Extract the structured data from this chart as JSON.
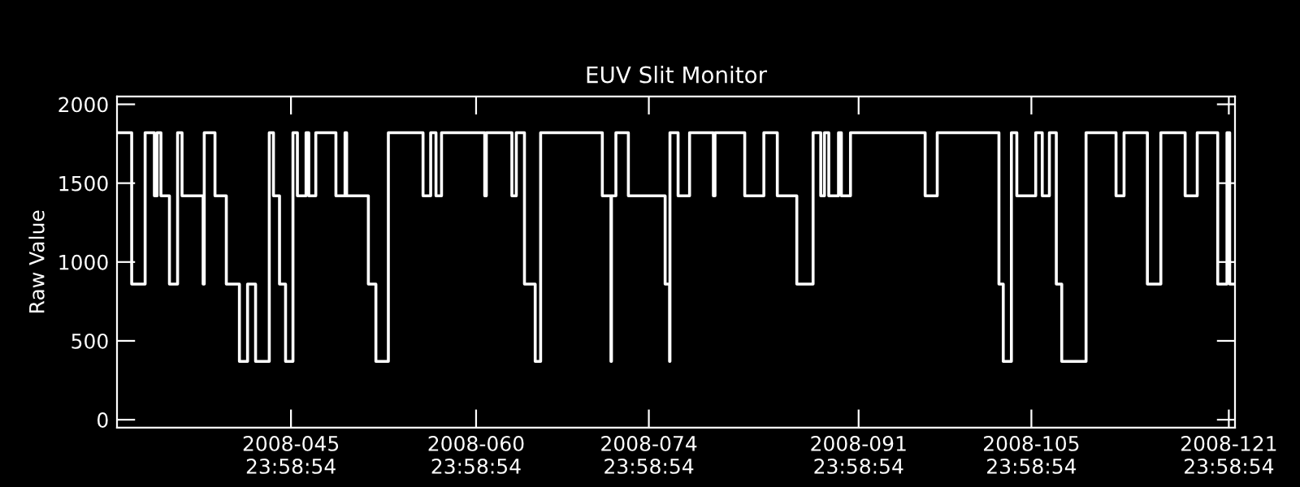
{
  "chart_data": {
    "type": "step",
    "title": "EUV Slit Monitor",
    "ylabel": "Raw Value",
    "xlim": [
      "2008-01-31T21:36",
      "2008-05-01T12:00"
    ],
    "ylim": [
      -50,
      2050
    ],
    "xticks": [
      {
        "value": "2008-02-14T23:59",
        "label": "2008-045\n23:58:54"
      },
      {
        "value": "2008-02-29T23:59",
        "label": "2008-060\n23:58:54"
      },
      {
        "value": "2008-03-14T23:59",
        "label": "2008-074\n23:58:54"
      },
      {
        "value": "2008-03-31T23:59",
        "label": "2008-091\n23:58:54"
      },
      {
        "value": "2008-04-14T23:59",
        "label": "2008-105\n23:58:54"
      },
      {
        "value": "2008-04-30T23:59",
        "label": "2008-121\n23:58:54"
      }
    ],
    "yticks": [
      0,
      500,
      1000,
      1500,
      2000
    ],
    "marker": "none",
    "line_style": "solid",
    "series": [
      {
        "color": "#ffffff",
        "x": [
          "2008-01-31T21:36",
          "2008-02-02T02:10",
          "2008-02-03T04:19",
          "2008-02-03T22:19",
          "2008-02-04T03:36",
          "2008-02-04T11:02",
          "2008-02-05T03:36",
          "2008-02-05T19:26",
          "2008-02-06T04:05",
          "2008-02-07T21:07",
          "2008-02-07T23:17",
          "2008-02-08T20:10",
          "2008-02-09T18:14",
          "2008-02-10T19:41",
          "2008-02-11T11:31",
          "2008-02-12T03:07",
          "2008-02-13T05:46",
          "2008-02-13T13:55",
          "2008-02-14T01:41",
          "2008-02-14T13:26",
          "2008-02-15T03:50",
          "2008-02-15T12:29",
          "2008-02-16T05:17",
          "2008-02-16T10:34",
          "2008-02-17T00:14",
          "2008-02-18T15:22",
          "2008-02-19T09:07",
          "2008-02-19T12:14",
          "2008-02-21T06:29",
          "2008-02-21T21:07",
          "2008-02-22T21:22",
          "2008-02-25T16:48",
          "2008-02-26T07:41",
          "2008-02-26T18:00",
          "2008-02-27T04:48",
          "2008-03-01T16:48",
          "2008-03-01T19:55",
          "2008-03-03T21:36",
          "2008-03-04T06:14",
          "2008-03-04T22:05",
          "2008-03-05T18:58",
          "2008-03-06T05:31",
          "2008-03-11T05:31",
          "2008-03-11T22:19",
          "2008-03-11T23:17",
          "2008-03-12T07:55",
          "2008-03-13T08:10",
          "2008-03-16T07:41",
          "2008-03-16T16:19",
          "2008-03-16T17:02",
          "2008-03-17T08:53",
          "2008-03-18T07:12",
          "2008-03-20T05:31",
          "2008-03-20T08:38",
          "2008-03-22T18:29",
          "2008-03-24T07:41",
          "2008-03-25T09:50",
          "2008-03-26T23:46",
          "2008-03-28T07:26",
          "2008-03-28T22:19",
          "2008-03-29T05:31",
          "2008-03-29T13:55",
          "2008-03-30T08:53",
          "2008-03-30T14:24",
          "2008-03-31T08:10",
          "2008-04-06T09:22",
          "2008-04-07T08:53",
          "2008-04-12T08:53",
          "2008-04-12T17:17",
          "2008-04-13T09:07",
          "2008-04-13T19:41",
          "2008-04-15T08:24",
          "2008-04-15T21:07",
          "2008-04-16T11:02",
          "2008-04-17T00:29",
          "2008-04-17T11:02",
          "2008-04-19T10:19",
          "2008-04-21T20:38",
          "2008-04-22T12:14",
          "2008-04-24T09:36",
          "2008-04-25T11:46",
          "2008-04-27T11:02",
          "2008-04-28T10:34",
          "2008-04-30T02:24",
          "2008-04-30T20:24",
          "2008-05-01T01:41",
          "2008-05-01T12:00"
        ],
        "values": [
          1820,
          860,
          1820,
          1420,
          1820,
          1420,
          860,
          1820,
          1420,
          860,
          1820,
          1420,
          860,
          370,
          860,
          370,
          1820,
          1420,
          860,
          370,
          1820,
          1420,
          1820,
          1420,
          1820,
          1420,
          1820,
          1420,
          860,
          370,
          1820,
          1420,
          1820,
          1420,
          1820,
          1420,
          1820,
          1420,
          1820,
          860,
          370,
          1820,
          1420,
          370,
          1420,
          1820,
          1420,
          860,
          370,
          1820,
          1420,
          1820,
          1420,
          1820,
          1420,
          1820,
          1420,
          860,
          1820,
          1420,
          1820,
          1420,
          1820,
          1420,
          1820,
          1420,
          1820,
          860,
          370,
          1820,
          1420,
          1820,
          1420,
          1820,
          860,
          370,
          1820,
          1420,
          1820,
          860,
          1820,
          1420,
          1820,
          860,
          1820,
          860,
          860
        ]
      }
    ]
  }
}
